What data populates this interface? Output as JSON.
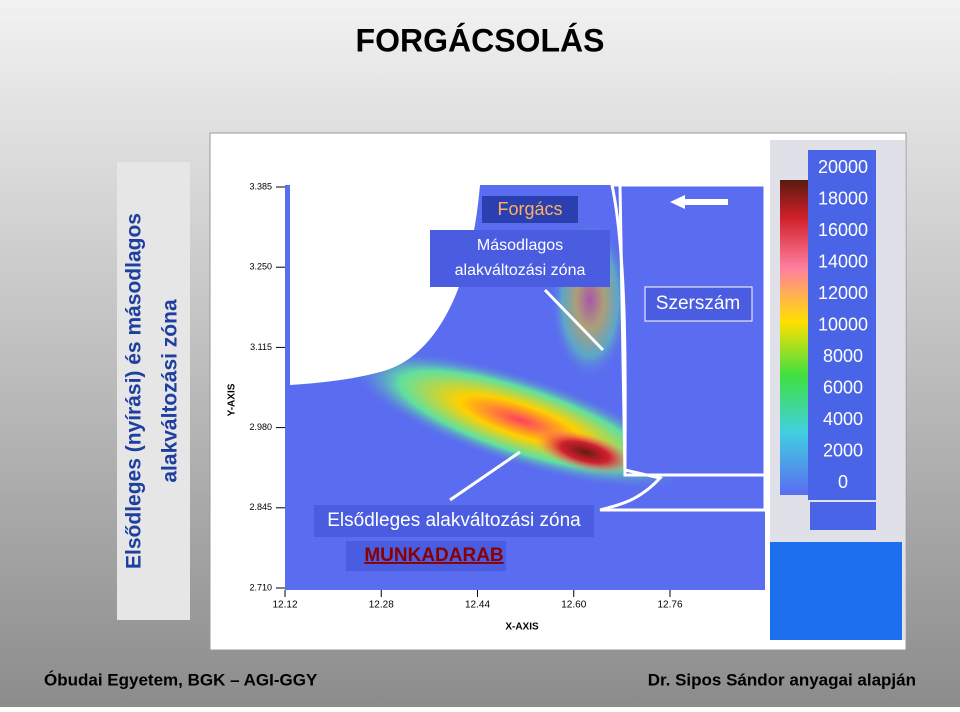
{
  "header": {
    "title": "FORGÁCSOLÁS"
  },
  "side_label": {
    "lines": [
      "Elsődleges (nyírási) és másodlagos",
      "alakváltozási zóna"
    ]
  },
  "figure": {
    "y_axis_label": "Y-AXIS",
    "x_axis_label": "X-AXIS",
    "y_ticks": [
      "3.385",
      "3.250",
      "3.115",
      "2.980",
      "2.845",
      "2.710"
    ],
    "x_ticks": [
      "12.12",
      "12.28",
      "12.44",
      "12.60",
      "12.76"
    ],
    "colorbar_ticks": [
      "20000",
      "18000",
      "16000",
      "14000",
      "12000",
      "10000",
      "8000",
      "6000",
      "4000",
      "2000",
      "0"
    ],
    "annotations": {
      "chip": "Forgács",
      "secondary_zone": [
        "Másodlagos",
        "alakváltozási zóna"
      ],
      "tool": "Szerszám",
      "primary_zone": "Elsődleges alakváltozási zóna",
      "workpiece": "MUNKADARAB"
    }
  },
  "footer": {
    "left": "Óbudai Egyetem, BGK – AGI-GGY",
    "right": "Dr. Sipos Sándor anyagai alapján"
  }
}
